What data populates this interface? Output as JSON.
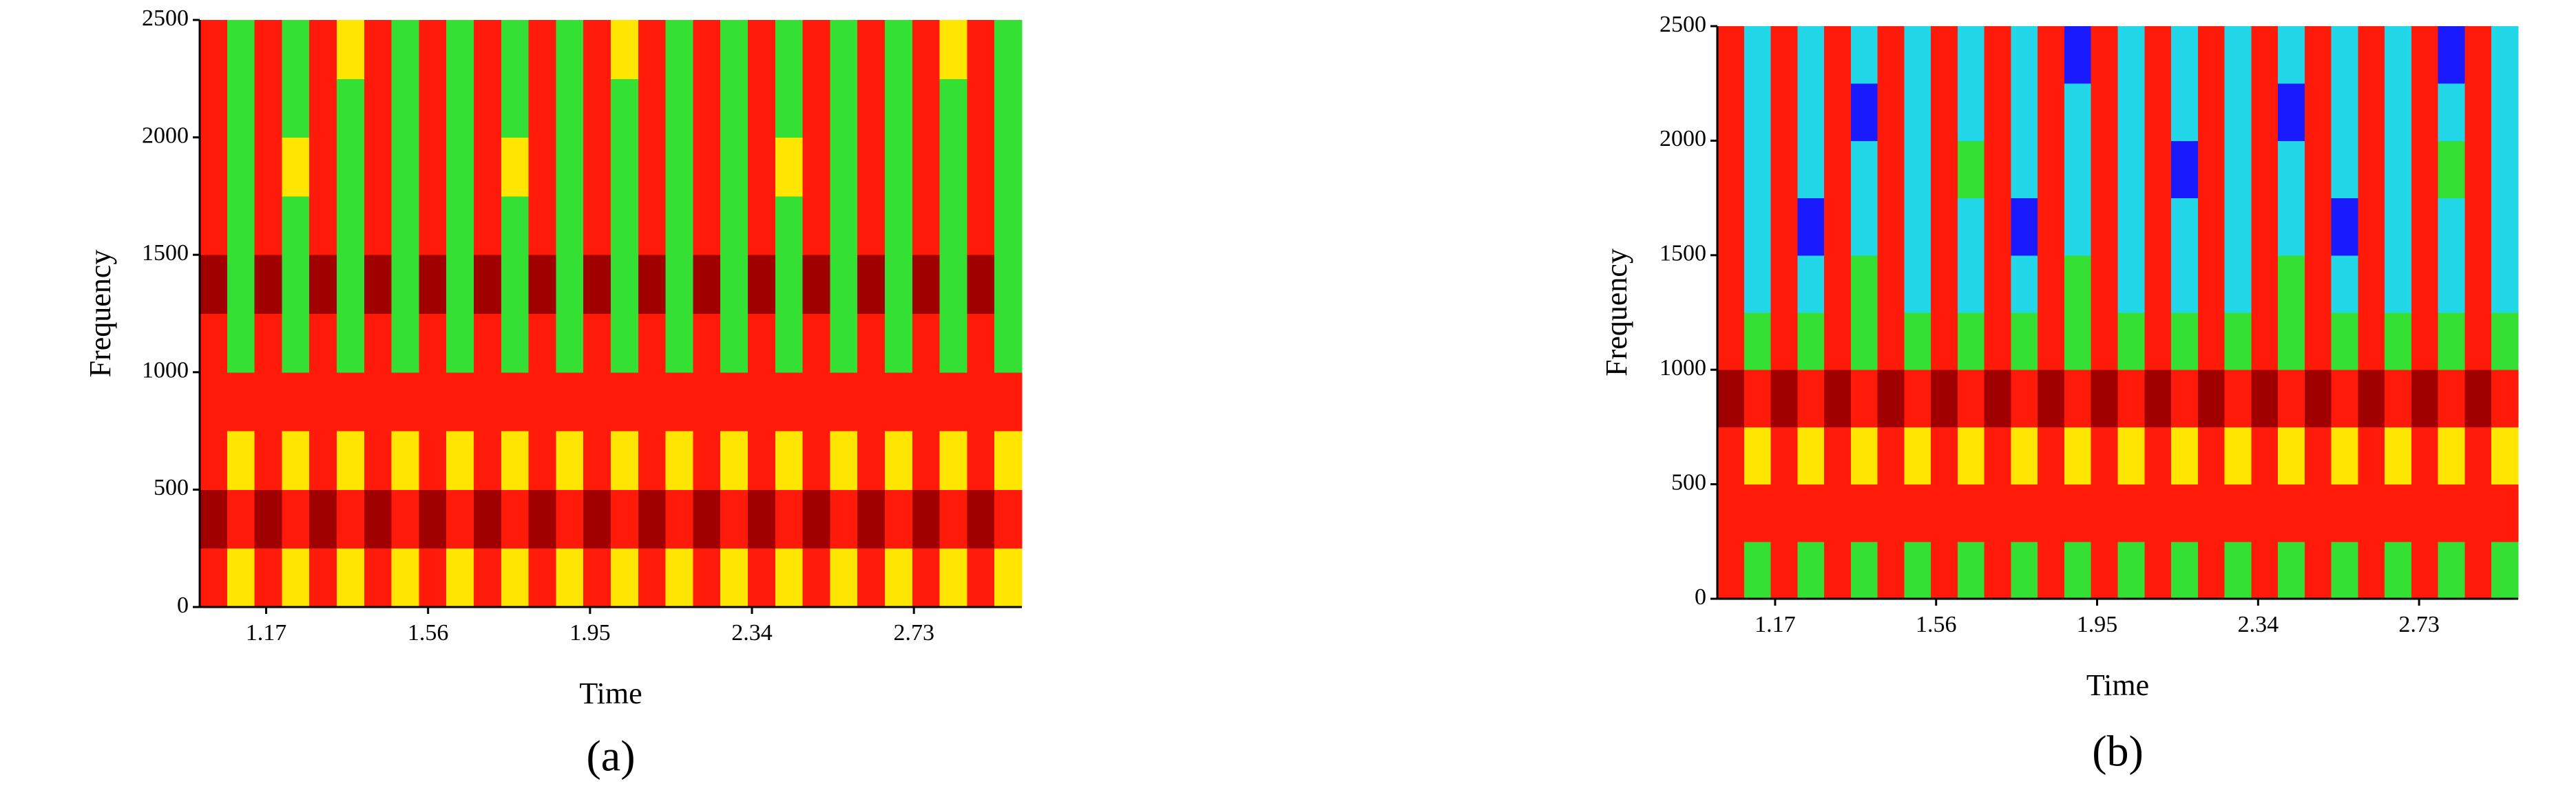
{
  "chart_data": [
    {
      "type": "heatmap",
      "title": "(a)",
      "x_label": "Time",
      "y_label": "Frequency",
      "xlim": [
        1.01,
        2.99
      ],
      "xticks": [
        1.17,
        1.56,
        1.95,
        2.34,
        2.73
      ],
      "ylim": [
        0,
        2500
      ],
      "yticks": [
        0,
        500,
        1000,
        1500,
        2000,
        2500
      ],
      "colors": [
        "#1a1aff",
        "#22d8e8",
        "#33e033",
        "#ffe600",
        "#ff1a0a",
        "#a00000"
      ],
      "z": [
        [
          4,
          3,
          4,
          3,
          4,
          3,
          4,
          3,
          4,
          3,
          4,
          3,
          4,
          3,
          4,
          3,
          4,
          3,
          4,
          3,
          4,
          3,
          4,
          3,
          4,
          3,
          4,
          3,
          4,
          3
        ],
        [
          5,
          4,
          5,
          4,
          5,
          4,
          5,
          4,
          5,
          4,
          5,
          4,
          5,
          4,
          5,
          4,
          5,
          4,
          5,
          4,
          5,
          4,
          5,
          4,
          5,
          4,
          5,
          4,
          5,
          4
        ],
        [
          4,
          3,
          4,
          3,
          4,
          3,
          4,
          3,
          4,
          3,
          4,
          3,
          4,
          3,
          4,
          3,
          4,
          3,
          4,
          3,
          4,
          3,
          4,
          3,
          4,
          3,
          4,
          3,
          4,
          3
        ],
        [
          4,
          4,
          4,
          4,
          4,
          4,
          4,
          4,
          4,
          4,
          4,
          4,
          4,
          4,
          4,
          4,
          4,
          4,
          4,
          4,
          4,
          4,
          4,
          4,
          4,
          4,
          4,
          4,
          4,
          4
        ],
        [
          4,
          2,
          4,
          2,
          4,
          2,
          4,
          2,
          4,
          2,
          4,
          2,
          4,
          2,
          4,
          2,
          4,
          2,
          4,
          2,
          4,
          2,
          4,
          2,
          4,
          2,
          4,
          2,
          4,
          2
        ],
        [
          5,
          2,
          5,
          2,
          5,
          2,
          5,
          2,
          5,
          2,
          5,
          2,
          5,
          2,
          5,
          2,
          5,
          2,
          5,
          2,
          5,
          2,
          5,
          2,
          5,
          2,
          5,
          2,
          5,
          2
        ],
        [
          4,
          2,
          4,
          2,
          4,
          2,
          4,
          2,
          4,
          2,
          4,
          2,
          4,
          2,
          4,
          2,
          4,
          2,
          4,
          2,
          4,
          2,
          4,
          2,
          4,
          2,
          4,
          2,
          4,
          2
        ],
        [
          4,
          2,
          4,
          3,
          4,
          2,
          4,
          2,
          4,
          2,
          4,
          3,
          4,
          2,
          4,
          2,
          4,
          2,
          4,
          2,
          4,
          3,
          4,
          2,
          4,
          2,
          4,
          2,
          4,
          2
        ],
        [
          4,
          2,
          4,
          2,
          4,
          2,
          4,
          2,
          4,
          2,
          4,
          2,
          4,
          2,
          4,
          2,
          4,
          2,
          4,
          2,
          4,
          2,
          4,
          2,
          4,
          2,
          4,
          2,
          4,
          2
        ],
        [
          4,
          2,
          4,
          2,
          4,
          3,
          4,
          2,
          4,
          2,
          4,
          2,
          4,
          2,
          4,
          3,
          4,
          2,
          4,
          2,
          4,
          2,
          4,
          2,
          4,
          2,
          4,
          3,
          4,
          2
        ]
      ]
    },
    {
      "type": "heatmap",
      "title": "(b)",
      "x_label": "Time",
      "y_label": "Frequency",
      "xlim": [
        1.03,
        2.97
      ],
      "xticks": [
        1.17,
        1.56,
        1.95,
        2.34,
        2.73
      ],
      "ylim": [
        0,
        2500
      ],
      "yticks": [
        0,
        500,
        1000,
        1500,
        2000,
        2500
      ],
      "colors": [
        "#1a1aff",
        "#22d8e8",
        "#33e033",
        "#ffe600",
        "#ff1a0a",
        "#a00000"
      ],
      "z": [
        [
          4,
          2,
          4,
          2,
          4,
          2,
          4,
          2,
          4,
          2,
          4,
          2,
          4,
          2,
          4,
          2,
          4,
          2,
          4,
          2,
          4,
          2,
          4,
          2,
          4,
          2,
          4,
          2,
          4,
          2
        ],
        [
          4,
          4,
          4,
          4,
          4,
          4,
          4,
          4,
          4,
          4,
          4,
          4,
          4,
          4,
          4,
          4,
          4,
          4,
          4,
          4,
          4,
          4,
          4,
          4,
          4,
          4,
          4,
          4,
          4,
          4
        ],
        [
          4,
          3,
          4,
          3,
          4,
          3,
          4,
          3,
          4,
          3,
          4,
          3,
          4,
          3,
          4,
          3,
          4,
          3,
          4,
          3,
          4,
          3,
          4,
          3,
          4,
          3,
          4,
          3,
          4,
          3
        ],
        [
          5,
          4,
          5,
          4,
          5,
          4,
          5,
          4,
          5,
          4,
          5,
          4,
          5,
          4,
          5,
          4,
          5,
          4,
          5,
          4,
          5,
          4,
          5,
          4,
          5,
          4,
          5,
          4,
          5,
          4
        ],
        [
          4,
          2,
          4,
          2,
          4,
          2,
          4,
          2,
          4,
          2,
          4,
          2,
          4,
          2,
          4,
          2,
          4,
          2,
          4,
          2,
          4,
          2,
          4,
          2,
          4,
          2,
          4,
          2,
          4,
          2
        ],
        [
          4,
          1,
          4,
          1,
          4,
          2,
          4,
          1,
          4,
          1,
          4,
          1,
          4,
          2,
          4,
          1,
          4,
          1,
          4,
          1,
          4,
          2,
          4,
          1,
          4,
          1,
          4,
          1,
          4,
          1
        ],
        [
          4,
          1,
          4,
          0,
          4,
          1,
          4,
          1,
          4,
          1,
          4,
          0,
          4,
          1,
          4,
          1,
          4,
          1,
          4,
          1,
          4,
          1,
          4,
          0,
          4,
          1,
          4,
          1,
          4,
          1
        ],
        [
          4,
          1,
          4,
          1,
          4,
          1,
          4,
          1,
          4,
          2,
          4,
          1,
          4,
          1,
          4,
          1,
          4,
          0,
          4,
          1,
          4,
          1,
          4,
          1,
          4,
          1,
          4,
          2,
          4,
          1
        ],
        [
          4,
          1,
          4,
          1,
          4,
          0,
          4,
          1,
          4,
          1,
          4,
          1,
          4,
          1,
          4,
          1,
          4,
          1,
          4,
          1,
          4,
          0,
          4,
          1,
          4,
          1,
          4,
          1,
          4,
          1
        ],
        [
          4,
          1,
          4,
          1,
          4,
          1,
          4,
          1,
          4,
          1,
          4,
          1,
          4,
          0,
          4,
          1,
          4,
          1,
          4,
          1,
          4,
          1,
          4,
          1,
          4,
          1,
          4,
          0,
          4,
          1
        ]
      ]
    }
  ]
}
